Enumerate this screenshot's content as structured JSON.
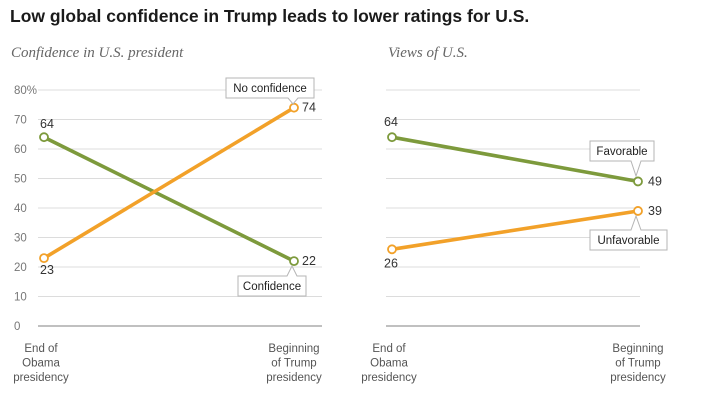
{
  "title": "Low global confidence in Trump leads to lower ratings for U.S.",
  "colors": {
    "green": "#7d9a3c",
    "orange": "#f2a129",
    "grid": "#dcdcdc",
    "axis": "#9a9a9a"
  },
  "chart_data": [
    {
      "type": "line",
      "title": "Confidence in U.S. president",
      "categories": [
        "End of Obama presidency",
        "Beginning of Trump presidency"
      ],
      "category_lines": [
        [
          "End of",
          "Obama",
          "presidency"
        ],
        [
          "Beginning",
          "of Trump",
          "presidency"
        ]
      ],
      "ylim": [
        0,
        80
      ],
      "yticks": [
        0,
        10,
        20,
        30,
        40,
        50,
        60,
        70,
        80
      ],
      "ytick_labels": [
        "0",
        "10",
        "20",
        "30",
        "40",
        "50",
        "60",
        "70",
        "80%"
      ],
      "series": [
        {
          "name": "Confidence",
          "color": "#7d9a3c",
          "values": [
            64,
            22
          ],
          "value_labels": [
            "64",
            "22"
          ]
        },
        {
          "name": "No confidence",
          "color": "#f2a129",
          "values": [
            23,
            74
          ],
          "value_labels": [
            "23",
            "74"
          ]
        }
      ],
      "callouts": [
        "Confidence",
        "No confidence"
      ]
    },
    {
      "type": "line",
      "title": "Views of U.S.",
      "categories": [
        "End of Obama presidency",
        "Beginning of Trump presidency"
      ],
      "category_lines": [
        [
          "End of",
          "Obama",
          "presidency"
        ],
        [
          "Beginning",
          "of Trump",
          "presidency"
        ]
      ],
      "ylim": [
        0,
        80
      ],
      "series": [
        {
          "name": "Favorable",
          "color": "#7d9a3c",
          "values": [
            64,
            49
          ],
          "value_labels": [
            "64",
            "49"
          ]
        },
        {
          "name": "Unfavorable",
          "color": "#f2a129",
          "values": [
            26,
            39
          ],
          "value_labels": [
            "26",
            "39"
          ]
        }
      ],
      "callouts": [
        "Favorable",
        "Unfavorable"
      ]
    }
  ]
}
